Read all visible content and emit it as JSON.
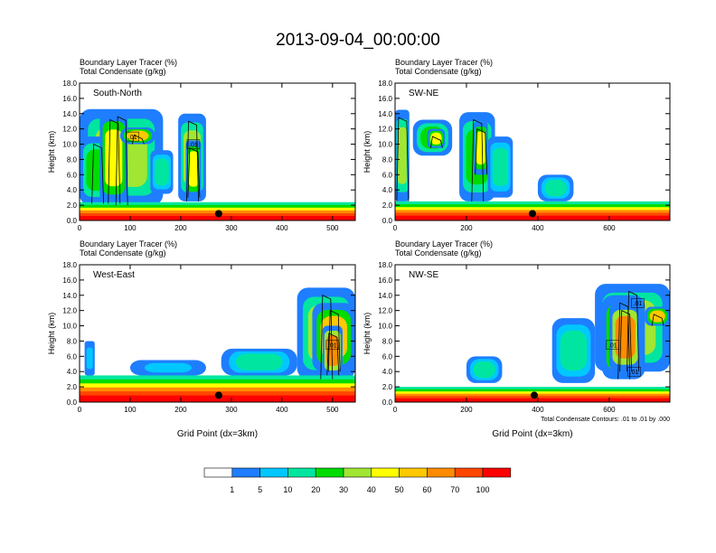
{
  "figure_title": "2013-09-04_00:00:00",
  "chart_data": [
    {
      "type": "heatmap",
      "panel_label": "South-North",
      "title_line1": "Boundary Layer Tracer   (%)",
      "title_line2": "Total Condensate   (g/kg)",
      "ylabel": "Height (km)",
      "xlabel": "",
      "xlim": [
        0,
        545
      ],
      "ylim": [
        0,
        18
      ],
      "xticks": [
        "0",
        "100",
        "200",
        "300",
        "400",
        "500"
      ],
      "yticks": [
        "0.0",
        "2.0",
        "4.0",
        "6.0",
        "8.0",
        "10.0",
        "12.0",
        "14.0",
        "16.0",
        "18.0"
      ],
      "marker_x": 275,
      "contour_labels": [
        {
          "text": ".01",
          "x": 105,
          "y": 11
        },
        {
          "text": ".01",
          "x": 225,
          "y": 10
        }
      ],
      "layer_top": 2.4,
      "clouds": [
        {
          "x": [
            0,
            165
          ],
          "top": 14.6,
          "base": 2.0,
          "v": 35
        },
        {
          "x": [
            0,
            70
          ],
          "top": 11.0,
          "base": 2.2,
          "v": 25
        },
        {
          "x": [
            40,
            95
          ],
          "top": 14.2,
          "base": 2.2,
          "v": 45
        },
        {
          "x": [
            80,
            150
          ],
          "top": 12.2,
          "base": 10.0,
          "v": 55
        },
        {
          "x": [
            140,
            185
          ],
          "top": 9.2,
          "base": 3.5,
          "v": 12
        },
        {
          "x": [
            195,
            250
          ],
          "top": 14.0,
          "base": 2.5,
          "v": 30
        },
        {
          "x": [
            210,
            240
          ],
          "top": 10.5,
          "base": 3.0,
          "v": 45
        }
      ]
    },
    {
      "type": "heatmap",
      "panel_label": "SW-NE",
      "title_line1": "Boundary Layer Tracer   (%)",
      "title_line2": "Total Condensate   (g/kg)",
      "ylabel": "Height (km)",
      "xlabel": "",
      "xlim": [
        0,
        770
      ],
      "ylim": [
        0,
        18
      ],
      "xticks": [
        "0",
        "200",
        "400",
        "600"
      ],
      "yticks": [
        "0.0",
        "2.0",
        "4.0",
        "6.0",
        "8.0",
        "10.0",
        "12.0",
        "14.0",
        "16.0",
        "18.0"
      ],
      "marker_x": 385,
      "contour_labels": [],
      "layer_top": 2.5,
      "clouds": [
        {
          "x": [
            0,
            40
          ],
          "top": 14.5,
          "base": 2.5,
          "v": 30
        },
        {
          "x": [
            50,
            160
          ],
          "top": 13.2,
          "base": 8.5,
          "v": 20
        },
        {
          "x": [
            90,
            140
          ],
          "top": 12.0,
          "base": 9.5,
          "v": 45
        },
        {
          "x": [
            180,
            280
          ],
          "top": 14.2,
          "base": 2.5,
          "v": 25
        },
        {
          "x": [
            220,
            260
          ],
          "top": 13.0,
          "base": 6.0,
          "v": 40
        },
        {
          "x": [
            260,
            330
          ],
          "top": 11.0,
          "base": 3.0,
          "v": 12
        },
        {
          "x": [
            400,
            500
          ],
          "top": 6.0,
          "base": 2.5,
          "v": 10
        }
      ]
    },
    {
      "type": "heatmap",
      "panel_label": "West-East",
      "title_line1": "Boundary Layer Tracer   (%)",
      "title_line2": "Total Condensate   (g/kg)",
      "ylabel": "Height (km)",
      "xlabel": "Grid Point (dx=3km)",
      "xlim": [
        0,
        545
      ],
      "ylim": [
        0,
        18
      ],
      "xticks": [
        "0",
        "100",
        "200",
        "300",
        "400",
        "500"
      ],
      "yticks": [
        "0.0",
        "2.0",
        "4.0",
        "6.0",
        "8.0",
        "10.0",
        "12.0",
        "14.0",
        "16.0",
        "18.0"
      ],
      "marker_x": 275,
      "contour_labels": [
        {
          "text": ".01",
          "x": 500,
          "y": 7.5
        }
      ],
      "layer_top": 3.5,
      "clouds": [
        {
          "x": [
            430,
            545
          ],
          "top": 15.0,
          "base": 3.0,
          "v": 30
        },
        {
          "x": [
            460,
            545
          ],
          "top": 13.0,
          "base": 4.0,
          "v": 50
        },
        {
          "x": [
            480,
            520
          ],
          "top": 10.0,
          "base": 3.5,
          "v": 60
        },
        {
          "x": [
            280,
            430
          ],
          "top": 7.0,
          "base": 3.5,
          "v": 15
        },
        {
          "x": [
            100,
            250
          ],
          "top": 5.5,
          "base": 3.5,
          "v": 8
        },
        {
          "x": [
            10,
            30
          ],
          "top": 8.0,
          "base": 3.5,
          "v": 8
        }
      ]
    },
    {
      "type": "heatmap",
      "panel_label": "NW-SE",
      "title_line1": "Boundary Layer Tracer   (%)",
      "title_line2": "Total Condensate   (g/kg)",
      "ylabel": "Height (km)",
      "xlabel": "Grid Point (dx=3km)",
      "xlim": [
        0,
        770
      ],
      "ylim": [
        0,
        18
      ],
      "xticks": [
        "0",
        "200",
        "400",
        "600"
      ],
      "yticks": [
        "0.0",
        "2.0",
        "4.0",
        "6.0",
        "8.0",
        "10.0",
        "12.0",
        "14.0",
        "16.0",
        "18.0"
      ],
      "marker_x": 390,
      "contour_labels": [
        {
          "text": ".01",
          "x": 680,
          "y": 13
        },
        {
          "text": ".01",
          "x": 610,
          "y": 7.5
        },
        {
          "text": ".01",
          "x": 670,
          "y": 4
        }
      ],
      "footnote": "Total Condensate Contours: .01 to .01 by .000",
      "layer_top": 2.0,
      "clouds": [
        {
          "x": [
            560,
            770
          ],
          "top": 15.5,
          "base": 4.0,
          "v": 30
        },
        {
          "x": [
            580,
            700
          ],
          "top": 14.0,
          "base": 3.0,
          "v": 45
        },
        {
          "x": [
            600,
            690
          ],
          "top": 13.0,
          "base": 4.0,
          "v": 60
        },
        {
          "x": [
            440,
            560
          ],
          "top": 11.0,
          "base": 2.5,
          "v": 15
        },
        {
          "x": [
            200,
            300
          ],
          "top": 6.0,
          "base": 2.5,
          "v": 10
        },
        {
          "x": [
            700,
            770
          ],
          "top": 12.5,
          "base": 10.0,
          "v": 50
        }
      ]
    }
  ],
  "colorbar": {
    "levels": [
      "1",
      "5",
      "10",
      "20",
      "30",
      "40",
      "50",
      "60",
      "70",
      "100"
    ],
    "colors": [
      "#ffffff",
      "#1e7eff",
      "#00c8ff",
      "#00e6a0",
      "#00dc00",
      "#a0e632",
      "#ffff00",
      "#ffc800",
      "#ff8c00",
      "#ff4600",
      "#ff0000"
    ]
  }
}
